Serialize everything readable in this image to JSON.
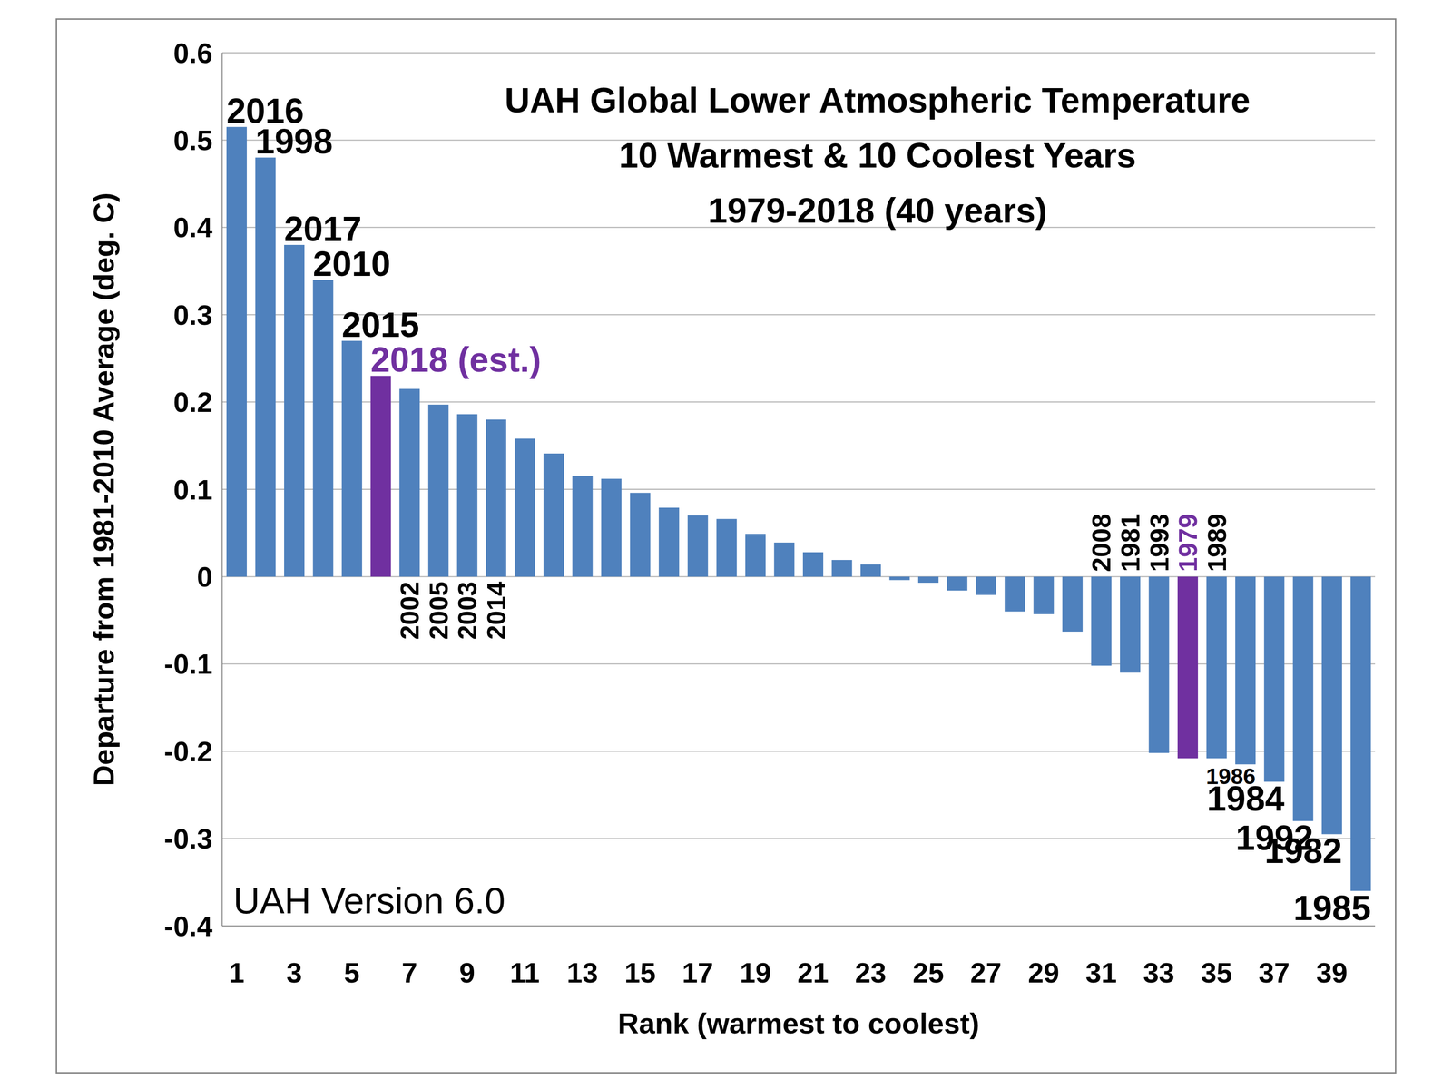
{
  "chart_data": {
    "type": "bar",
    "title": "UAH Global Lower Atmospheric Temperature",
    "subtitle": [
      "10 Warmest & 10 Coolest Years",
      "1979-2018 (40 years)"
    ],
    "x_label": "Rank (warmest to coolest)",
    "y_label": "Departure from 1981-2010 Average (deg. C)",
    "annotations": [
      "UAH Version 6.0"
    ],
    "categories": [
      "1",
      null,
      "3",
      null,
      "5",
      null,
      "7",
      null,
      "9",
      null,
      "11",
      null,
      "13",
      null,
      "15",
      null,
      "17",
      null,
      "19",
      null,
      "21",
      null,
      "23",
      null,
      "25",
      null,
      "27",
      null,
      "29",
      null,
      "31",
      null,
      "33",
      null,
      "35",
      null,
      "37",
      null,
      "39",
      null
    ],
    "values": [
      0.515,
      0.48,
      0.38,
      0.34,
      0.27,
      0.23,
      0.215,
      0.197,
      0.186,
      0.18,
      0.158,
      0.141,
      0.115,
      0.112,
      0.096,
      0.079,
      0.07,
      0.066,
      0.049,
      0.039,
      0.028,
      0.019,
      0.014,
      -0.004,
      -0.007,
      -0.016,
      -0.021,
      -0.04,
      -0.043,
      -0.063,
      -0.102,
      -0.11,
      -0.202,
      -0.208,
      -0.208,
      -0.215,
      -0.235,
      -0.28,
      -0.295,
      -0.36
    ],
    "bar_labels": [
      "2016",
      "1998",
      "2017",
      "2010",
      "2015",
      "2018 (est.)",
      "2002",
      "2005",
      "2003",
      "2014",
      null,
      null,
      null,
      null,
      null,
      null,
      null,
      null,
      null,
      null,
      null,
      null,
      null,
      null,
      null,
      null,
      null,
      null,
      null,
      null,
      "2008",
      "1981",
      "1993",
      "1979",
      "1989",
      "1986",
      "1984",
      "1992",
      "1982",
      "1985"
    ],
    "colors": [
      "#4f81bd",
      "#4f81bd",
      "#4f81bd",
      "#4f81bd",
      "#4f81bd",
      "#7030a0",
      "#4f81bd",
      "#4f81bd",
      "#4f81bd",
      "#4f81bd",
      "#4f81bd",
      "#4f81bd",
      "#4f81bd",
      "#4f81bd",
      "#4f81bd",
      "#4f81bd",
      "#4f81bd",
      "#4f81bd",
      "#4f81bd",
      "#4f81bd",
      "#4f81bd",
      "#4f81bd",
      "#4f81bd",
      "#4f81bd",
      "#4f81bd",
      "#4f81bd",
      "#4f81bd",
      "#4f81bd",
      "#4f81bd",
      "#4f81bd",
      "#4f81bd",
      "#4f81bd",
      "#4f81bd",
      "#7030a0",
      "#4f81bd",
      "#4f81bd",
      "#4f81bd",
      "#4f81bd",
      "#4f81bd",
      "#4f81bd"
    ],
    "ylim": [
      -0.4,
      0.6
    ],
    "yticks": [
      -0.4,
      -0.3,
      -0.2,
      -0.1,
      0,
      0.1,
      0.2,
      0.3,
      0.4,
      0.5,
      0.6
    ],
    "grid": true
  }
}
